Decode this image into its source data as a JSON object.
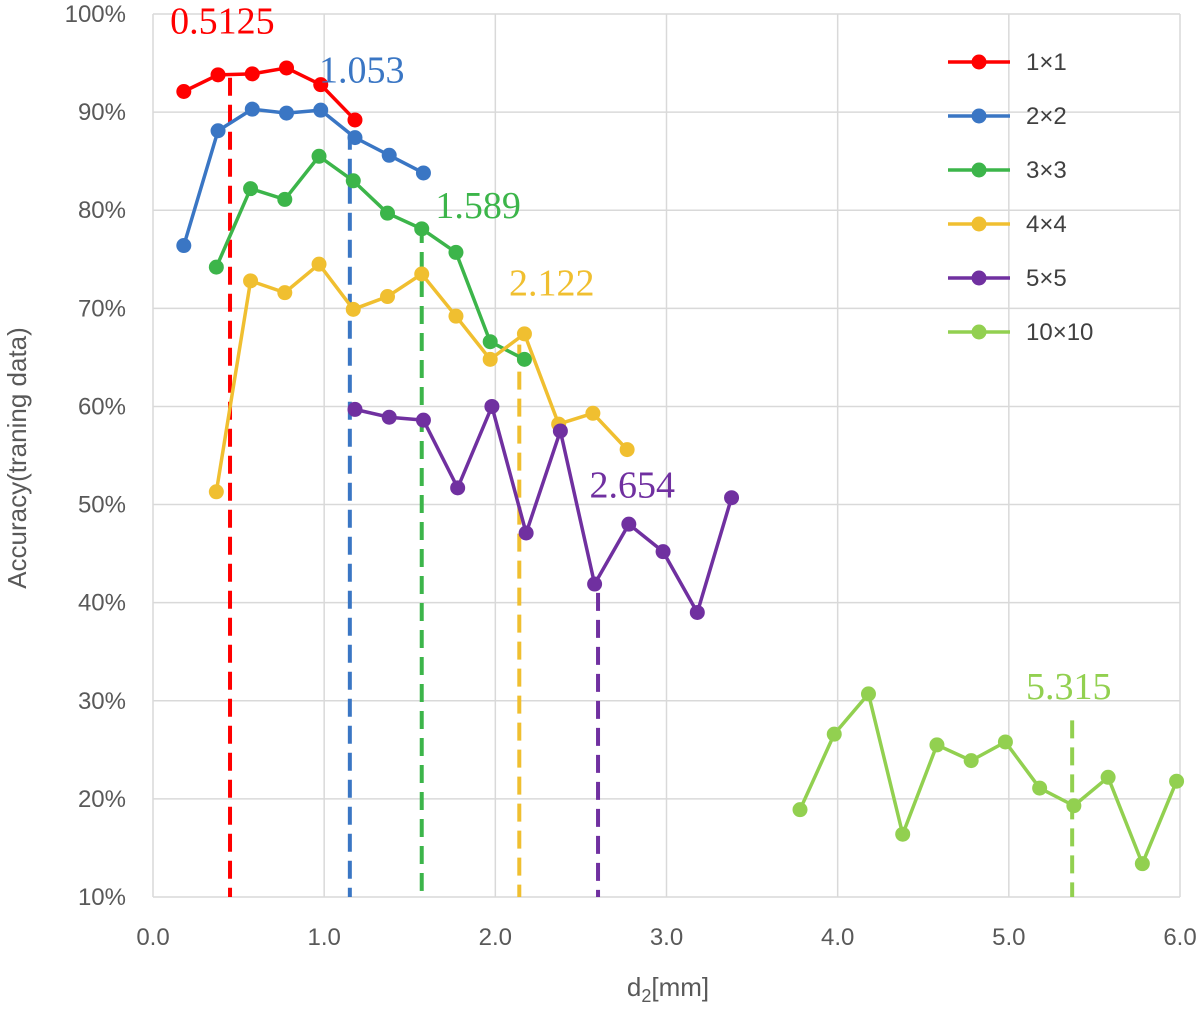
{
  "chart_data": {
    "type": "line",
    "title": "",
    "xlabel_main": "d",
    "xlabel_sub": "2",
    "xlabel_unit": "[mm]",
    "ylabel": "Accuracy(traning data)",
    "xlim": [
      0,
      6
    ],
    "ylim": [
      0.1,
      1.0
    ],
    "x_ticks": [
      0,
      1,
      2,
      3,
      4,
      5,
      6
    ],
    "x_tick_labels": [
      "0.0",
      "1.0",
      "2.0",
      "3.0",
      "4.0",
      "5.0",
      "6.0"
    ],
    "y_ticks": [
      0.1,
      0.2,
      0.3,
      0.4,
      0.5,
      0.6,
      0.7,
      0.8,
      0.9,
      1.0
    ],
    "y_tick_labels": [
      "10%",
      "20%",
      "30%",
      "40%",
      "50%",
      "60%",
      "70%",
      "80%",
      "90%",
      "100%"
    ],
    "grid": true,
    "legend_position": "top-right",
    "series": [
      {
        "name": "1×1",
        "color": "#ff0000",
        "x": [
          0.18,
          0.38,
          0.58,
          0.78,
          0.98,
          1.18
        ],
        "y": [
          0.921,
          0.938,
          0.939,
          0.945,
          0.928,
          0.892
        ]
      },
      {
        "name": "2×2",
        "color": "#3a76c4",
        "x": [
          0.18,
          0.38,
          0.58,
          0.78,
          0.98,
          1.18,
          1.38,
          1.58
        ],
        "y": [
          0.764,
          0.881,
          0.903,
          0.899,
          0.902,
          0.874,
          0.856,
          0.838
        ]
      },
      {
        "name": "3×3",
        "color": "#3cb54a",
        "x": [
          0.37,
          0.57,
          0.77,
          0.97,
          1.17,
          1.37,
          1.57,
          1.77,
          1.97,
          2.17
        ],
        "y": [
          0.742,
          0.822,
          0.811,
          0.855,
          0.83,
          0.797,
          0.781,
          0.757,
          0.666,
          0.648
        ]
      },
      {
        "name": "4×4",
        "color": "#f0bf30",
        "x": [
          0.37,
          0.57,
          0.77,
          0.97,
          1.17,
          1.37,
          1.57,
          1.77,
          1.97,
          2.17,
          2.37,
          2.57,
          2.77
        ],
        "y": [
          0.513,
          0.728,
          0.716,
          0.745,
          0.699,
          0.712,
          0.735,
          0.692,
          0.648,
          0.674,
          0.582,
          0.593,
          0.556
        ]
      },
      {
        "name": "5×5",
        "color": "#7030a0",
        "x": [
          1.18,
          1.38,
          1.58,
          1.78,
          1.98,
          2.18,
          2.38,
          2.58,
          2.78,
          2.98,
          3.18,
          3.38
        ],
        "y": [
          0.597,
          0.589,
          0.586,
          0.517,
          0.6,
          0.471,
          0.575,
          0.419,
          0.48,
          0.452,
          0.39,
          0.507
        ]
      },
      {
        "name": "10×10",
        "color": "#92d050",
        "x": [
          3.78,
          3.98,
          4.18,
          4.38,
          4.58,
          4.78,
          4.98,
          5.18,
          5.38,
          5.58,
          5.78,
          5.98
        ],
        "y": [
          0.189,
          0.266,
          0.307,
          0.164,
          0.255,
          0.239,
          0.258,
          0.211,
          0.193,
          0.222,
          0.134,
          0.218
        ]
      }
    ],
    "reference_lines": [
      {
        "label": "0.5125",
        "x": 0.45,
        "y_top": 0.935,
        "label_x": 0.1,
        "label_y": 0.98,
        "color": "#ff0000"
      },
      {
        "label": "1.053",
        "x": 1.15,
        "y_top": 0.88,
        "label_x": 0.97,
        "label_y": 0.93,
        "color": "#3a76c4"
      },
      {
        "label": "1.589",
        "x": 1.57,
        "y_top": 0.785,
        "label_x": 1.65,
        "label_y": 0.792,
        "color": "#3cb54a"
      },
      {
        "label": "2.122",
        "x": 2.14,
        "y_top": 0.663,
        "label_x": 2.08,
        "label_y": 0.713,
        "color": "#f0bf30"
      },
      {
        "label": "2.654",
        "x": 2.6,
        "y_top": 0.41,
        "label_x": 2.55,
        "label_y": 0.507,
        "color": "#7030a0"
      },
      {
        "label": "5.315",
        "x": 5.37,
        "y_top": 0.28,
        "label_x": 5.1,
        "label_y": 0.302,
        "color": "#92d050"
      }
    ]
  }
}
